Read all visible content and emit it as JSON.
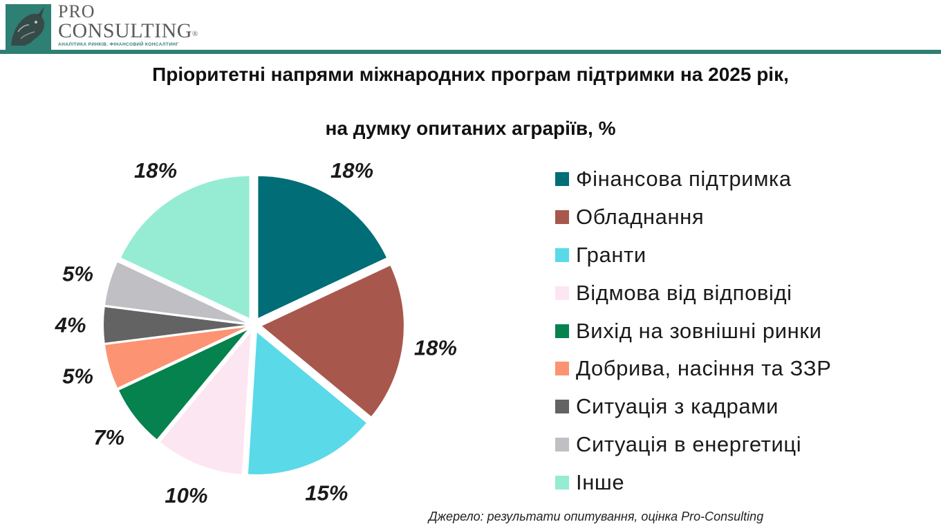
{
  "header": {
    "logo_pro": "PRO",
    "logo_consulting": "CONSULTING",
    "logo_registered": "®",
    "logo_tagline": "АНАЛІТИКА РИНКІВ. ФІНАНСОВИЙ КОНСАЛТИНГ",
    "brand_color": "#2e7f74"
  },
  "chart_data": {
    "type": "pie",
    "title": "Пріоритетні напрями міжнародних програм підтримки на 2025 рік,",
    "subtitle": "на думку опитаних аграріїв, %",
    "legend_position": "right",
    "slices": [
      {
        "label": "Фінансова підтримка",
        "value": 18,
        "value_label": "18%",
        "color": "#006d77"
      },
      {
        "label": "Обладнання",
        "value": 18,
        "value_label": "18%",
        "color": "#a8574d"
      },
      {
        "label": "Гранти",
        "value": 15,
        "value_label": "15%",
        "color": "#5ad9e8"
      },
      {
        "label": "Відмова від відповіді",
        "value": 10,
        "value_label": "10%",
        "color": "#fce6f1"
      },
      {
        "label": "Вихід на зовнішні ринки",
        "value": 7,
        "value_label": "7%",
        "color": "#05824d"
      },
      {
        "label": "Добрива, насіння та ЗЗР",
        "value": 5,
        "value_label": "5%",
        "color": "#fc9372"
      },
      {
        "label": "Ситуація з кадрами",
        "value": 4,
        "value_label": "4%",
        "color": "#636363"
      },
      {
        "label": "Ситуація в енергетиці",
        "value": 5,
        "value_label": "5%",
        "color": "#c0bfc4"
      },
      {
        "label": "Інше",
        "value": 18,
        "value_label": "18%",
        "color": "#95ecd2"
      }
    ]
  },
  "source": "Джерело:  результати опитування, оцінка Pro-Consulting"
}
